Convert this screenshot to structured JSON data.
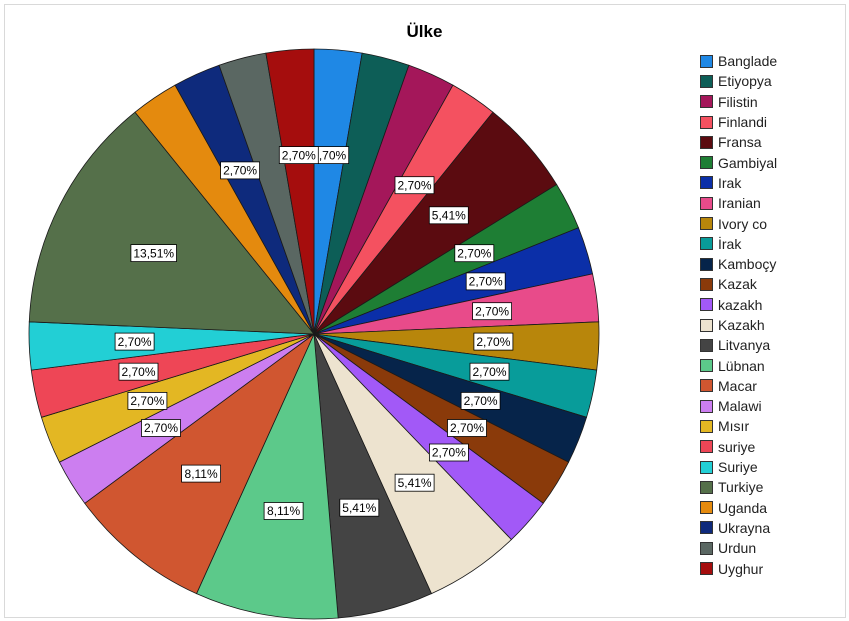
{
  "chart_data": {
    "type": "pie",
    "title": "Ülke",
    "legend_position": "right",
    "slices": [
      {
        "name": "Banglade",
        "value": 2.7,
        "label": "2,70%",
        "color": "#1f88e5"
      },
      {
        "name": "Etiyopya",
        "value": 2.7,
        "label": "",
        "color": "#0d5e57"
      },
      {
        "name": "Filistin",
        "value": 2.7,
        "label": "",
        "color": "#a4175a"
      },
      {
        "name": "Finlandi",
        "value": 2.7,
        "label": "2,70%",
        "color": "#f45160"
      },
      {
        "name": "Fransa",
        "value": 5.41,
        "label": "5,41%",
        "color": "#5b0b10"
      },
      {
        "name": "Gambiyal",
        "value": 2.7,
        "label": "2,70%",
        "color": "#1e7e34"
      },
      {
        "name": "Irak",
        "value": 2.7,
        "label": "2,70%",
        "color": "#0b2fa8"
      },
      {
        "name": "Iranian",
        "value": 2.7,
        "label": "2,70%",
        "color": "#e84b8a"
      },
      {
        "name": "Ivory co",
        "value": 2.7,
        "label": "2,70%",
        "color": "#b8860b"
      },
      {
        "name": "İrak",
        "value": 2.7,
        "label": "2,70%",
        "color": "#089c9a"
      },
      {
        "name": "Kamboçy",
        "value": 2.7,
        "label": "2,70%",
        "color": "#06244a"
      },
      {
        "name": "Kazak",
        "value": 2.7,
        "label": "2,70%",
        "color": "#8a3a0a"
      },
      {
        "name": "kazakh",
        "value": 2.7,
        "label": "2,70%",
        "color": "#a259f7"
      },
      {
        "name": "Kazakh",
        "value": 5.41,
        "label": "5,41%",
        "color": "#ede3cf"
      },
      {
        "name": "Litvanya",
        "value": 5.41,
        "label": "5,41%",
        "color": "#444444"
      },
      {
        "name": "Lübnan",
        "value": 8.11,
        "label": "8,11%",
        "color": "#5cc98a"
      },
      {
        "name": "Macar",
        "value": 8.11,
        "label": "8,11%",
        "color": "#d05630"
      },
      {
        "name": "Malawi",
        "value": 2.7,
        "label": "2,70%",
        "color": "#cc7ef0"
      },
      {
        "name": "Mısır",
        "value": 2.7,
        "label": "2,70%",
        "color": "#e3b723"
      },
      {
        "name": "suriye",
        "value": 2.7,
        "label": "2,70%",
        "color": "#ee4656"
      },
      {
        "name": "Suriye",
        "value": 2.7,
        "label": "2,70%",
        "color": "#22cfd5"
      },
      {
        "name": "Turkiye",
        "value": 13.51,
        "label": "13,51%",
        "color": "#55704a"
      },
      {
        "name": "Uganda",
        "value": 2.7,
        "label": "",
        "color": "#e48a0e"
      },
      {
        "name": "Ukrayna",
        "value": 2.7,
        "label": "2,70%",
        "color": "#0e2a7c"
      },
      {
        "name": "Urdun",
        "value": 2.7,
        "label": "",
        "color": "#5a6762"
      },
      {
        "name": "Uyghur",
        "value": 2.7,
        "label": "2,70%",
        "color": "#a50d0d"
      }
    ]
  }
}
